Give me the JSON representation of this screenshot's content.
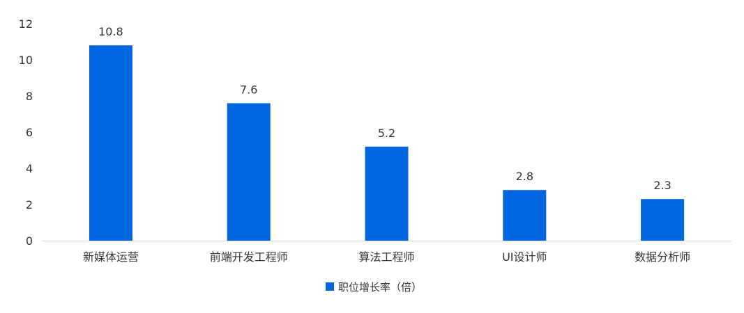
{
  "chart_data": {
    "type": "bar",
    "categories": [
      "新媒体运营",
      "前端开发工程师",
      "算法工程师",
      "UI设计师",
      "数据分析师"
    ],
    "series": [
      {
        "name": "职位增长率（倍）",
        "values": [
          10.8,
          7.6,
          5.2,
          2.8,
          2.3
        ],
        "color": "#0066e0"
      }
    ],
    "data_labels": [
      "10.8",
      "7.6",
      "5.2",
      "2.8",
      "2.3"
    ],
    "y_ticks": [
      "0",
      "2",
      "4",
      "6",
      "8",
      "10",
      "12"
    ],
    "ylim": [
      0,
      12
    ],
    "grid": false,
    "legend_position": "bottom-center"
  }
}
